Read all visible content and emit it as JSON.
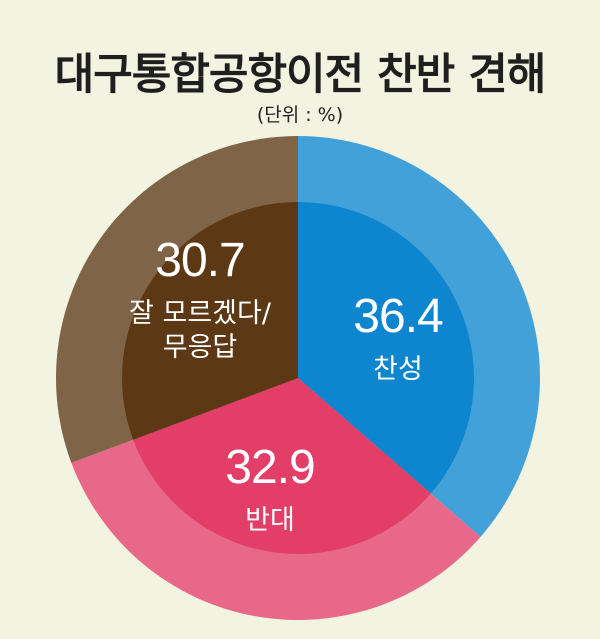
{
  "title": "대구통합공항이전 찬반 견해",
  "unit": "(단위 : %)",
  "chart_data": {
    "type": "pie",
    "title": "대구통합공항이전 찬반 견해",
    "unit": "%",
    "slices": [
      {
        "label": "찬성",
        "value": 36.4,
        "value_text": "36.4",
        "color": "#0e86cf"
      },
      {
        "label": "반대",
        "value": 32.9,
        "value_text": "32.9",
        "color": "#e23e68"
      },
      {
        "label": "잘 모르겠다/ 무응답",
        "label_lines": [
          "잘 모르겠다/",
          "무응답"
        ],
        "value": 30.7,
        "value_text": "30.7",
        "color": "#5c3815"
      }
    ]
  }
}
